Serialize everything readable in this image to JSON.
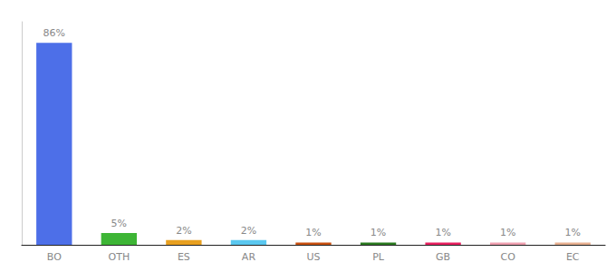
{
  "chart_data": {
    "type": "bar",
    "categories": [
      "BO",
      "OTH",
      "ES",
      "AR",
      "US",
      "PL",
      "GB",
      "CO",
      "EC"
    ],
    "values": [
      86,
      5,
      2,
      2,
      1,
      1,
      1,
      1,
      1
    ],
    "value_labels": [
      "86%",
      "5%",
      "2%",
      "2%",
      "1%",
      "1%",
      "1%",
      "1%",
      "1%"
    ],
    "colors": [
      "#4d6fe8",
      "#3db535",
      "#e8a020",
      "#5bc8f0",
      "#c85010",
      "#2a7a20",
      "#e82060",
      "#f0a0b0",
      "#e8b090"
    ],
    "ylim": [
      0,
      95
    ],
    "grid": false,
    "data_labels": true,
    "tick_labels": "x"
  }
}
